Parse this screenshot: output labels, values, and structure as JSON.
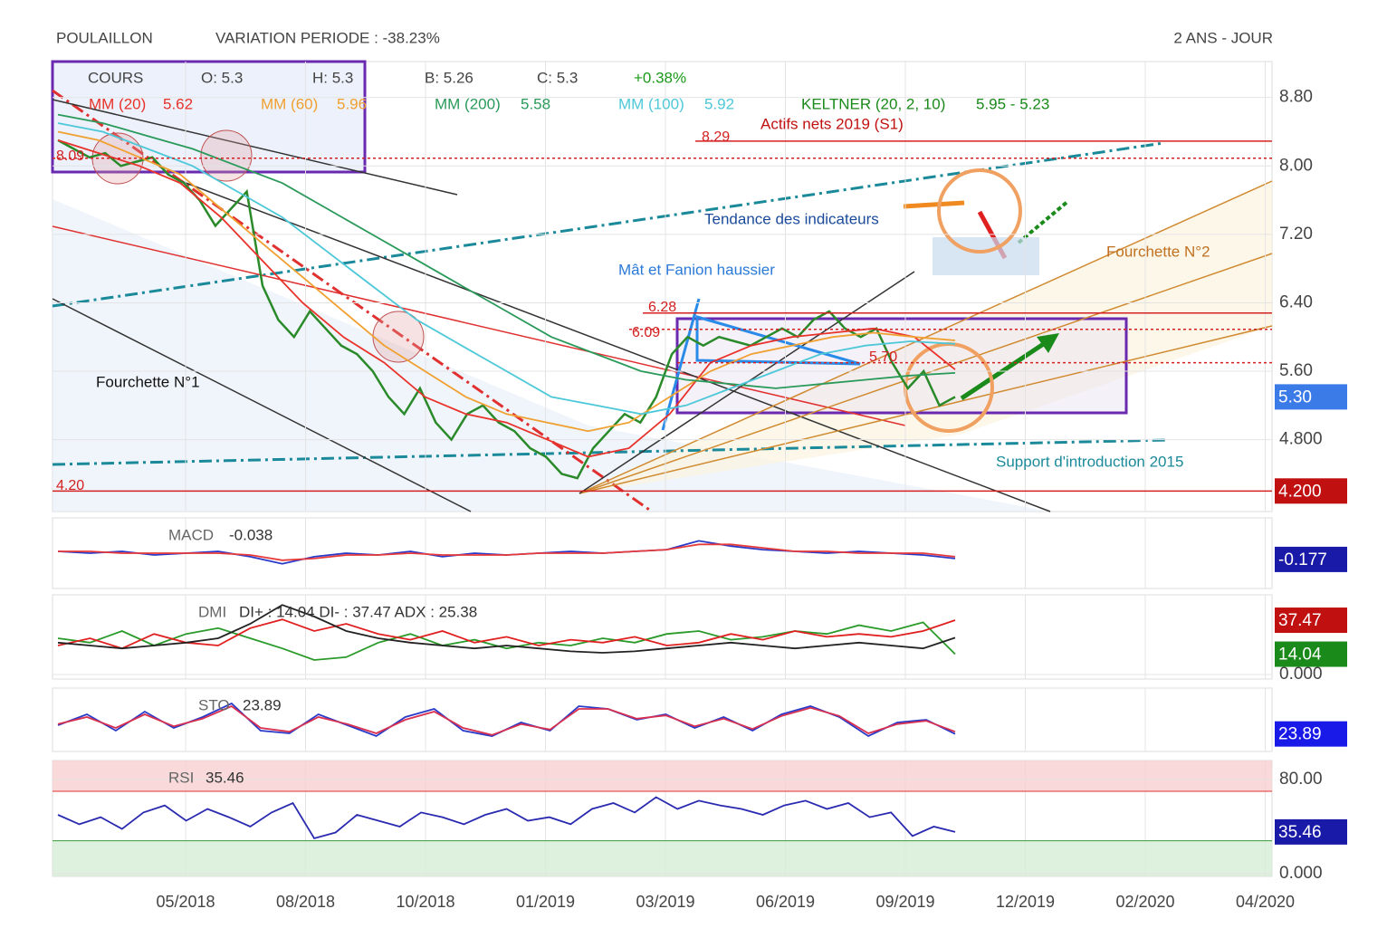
{
  "chart_data": [
    {
      "type": "line",
      "title": "POULAILLON",
      "subtitle": "VARIATION PERIODE : -38.23%",
      "period": "2 ANS - JOUR",
      "quote": [
        "COURS",
        "O: 5.3",
        "H: 5.3",
        "B: 5.26",
        "C: 5.3",
        "+0.38%"
      ],
      "ylim": [
        3.96,
        9.22
      ],
      "yticks": [
        {
          "value": 8.8,
          "label": "8.80"
        },
        {
          "value": 8,
          "label": "8.00"
        },
        {
          "value": 7.2,
          "label": "7.20"
        },
        {
          "value": 6.4,
          "label": "6.40"
        },
        {
          "value": 5.6,
          "label": "5.60"
        },
        {
          "value": 4.8,
          "label": "4.800"
        }
      ],
      "x_tick_labels": [
        "05/2018",
        "08/2018",
        "10/2018",
        "01/2019",
        "03/2019",
        "06/2019",
        "09/2019",
        "12/2019",
        "02/2020",
        "04/2020"
      ],
      "series": [
        {
          "name": "COURS",
          "color": "#2a8a2a",
          "values": [
            8.3,
            8.2,
            8.1,
            8.15,
            8.0,
            8.05,
            8.1,
            7.9,
            7.8,
            7.6,
            7.3,
            7.5,
            7.7,
            6.6,
            6.2,
            6.0,
            6.3,
            6.1,
            5.9,
            5.8,
            5.6,
            5.3,
            5.1,
            5.4,
            5.0,
            4.8,
            5.1,
            5.2,
            5.0,
            4.9,
            4.7,
            4.6,
            4.4,
            4.35,
            4.7,
            4.9,
            5.1,
            5.0,
            5.3,
            5.8,
            6.0,
            5.9,
            6.0,
            5.95,
            5.9,
            6.0,
            6.1,
            6.0,
            6.2,
            6.3,
            6.1,
            6.0,
            6.1,
            5.7,
            5.4,
            5.6,
            5.2,
            5.3
          ]
        },
        {
          "name": "MM (20)",
          "color": "#e8322a",
          "last": 5.62,
          "values": [
            8.3,
            8.15,
            8.0,
            7.8,
            7.4,
            6.9,
            6.4,
            6.0,
            5.7,
            5.3,
            5.1,
            5.0,
            4.8,
            4.6,
            4.7,
            5.1,
            5.7,
            5.9,
            6.0,
            6.05,
            6.1,
            6.0,
            5.62
          ]
        },
        {
          "name": "MM (60)",
          "color": "#f0a030",
          "last": 5.96,
          "values": [
            8.4,
            8.3,
            8.1,
            7.9,
            7.5,
            7.1,
            6.7,
            6.3,
            5.9,
            5.6,
            5.3,
            5.1,
            5.0,
            4.9,
            5.0,
            5.3,
            5.6,
            5.8,
            5.9,
            6.0,
            6.05,
            6.0,
            5.96
          ]
        },
        {
          "name": "MM (200)",
          "color": "#2a9a5a",
          "last": 5.58,
          "values": [
            8.6,
            8.5,
            8.35,
            8.2,
            8.0,
            7.8,
            7.5,
            7.2,
            6.9,
            6.6,
            6.3,
            6.0,
            5.8,
            5.6,
            5.5,
            5.45,
            5.4,
            5.45,
            5.5,
            5.55,
            5.58
          ]
        },
        {
          "name": "MM (100)",
          "color": "#4cc8d8",
          "last": 5.92,
          "values": [
            8.5,
            8.4,
            8.2,
            8.0,
            7.7,
            7.4,
            7.0,
            6.6,
            6.2,
            5.9,
            5.6,
            5.3,
            5.2,
            5.1,
            5.2,
            5.4,
            5.6,
            5.8,
            5.9,
            5.95,
            5.92
          ]
        },
        {
          "name": "KELTNER (20, 2, 10)",
          "color": "#1a8a1a",
          "last_label": "5.95 - 5.23"
        }
      ],
      "levels": [
        {
          "value": 8.29,
          "label": "8.29",
          "color": "#d42020",
          "dashed": false
        },
        {
          "value": 4.2,
          "label": "4.20",
          "color": "#d42020",
          "dashed": false
        },
        {
          "value": 6.28,
          "label": "6.28",
          "color": "#d42020",
          "dashed": false
        },
        {
          "value": 8.09,
          "label": "8.09",
          "color": "#d42020",
          "dashed": true
        },
        {
          "value": 6.09,
          "label": "6.09",
          "color": "#d42020",
          "dashed": true
        },
        {
          "value": 5.7,
          "label": "5.70",
          "color": "#d42020",
          "dashed": true
        }
      ],
      "badges": [
        {
          "value": 5.3,
          "label": "5.30",
          "color": "#3b7be8"
        },
        {
          "value": 4.2,
          "label": "4.200",
          "color": "#c01010"
        }
      ],
      "annotations": [
        {
          "text": "Actifs nets 2019 (S1)",
          "color": "#c01010"
        },
        {
          "text": "Tendance des indicateurs",
          "color": "#1a4a9a"
        },
        {
          "text": "Mât et Fanion haussier",
          "color": "#2a7ad8"
        },
        {
          "text": "Fourchette N°2",
          "color": "#c07020"
        },
        {
          "text": "Fourchette N°1",
          "color": "#111111"
        },
        {
          "text": "Support d'introduction 2015",
          "color": "#1a8a9a"
        }
      ]
    },
    {
      "type": "line",
      "title": "MACD",
      "header": "-0.038",
      "ylim": [
        -1,
        1
      ],
      "series": [
        {
          "name": "MACD",
          "color": "#2a3ac8",
          "values": [
            0.05,
            0.0,
            0.05,
            -0.05,
            0.0,
            0.05,
            -0.1,
            -0.3,
            -0.1,
            0.0,
            -0.05,
            0.05,
            -0.1,
            0.0,
            -0.05,
            0.0,
            0.05,
            0.0,
            0.05,
            0.1,
            0.35,
            0.2,
            0.1,
            0.05,
            0.0,
            0.05,
            0.0,
            -0.05,
            -0.15
          ]
        },
        {
          "name": "Signal",
          "color": "#e83a3a",
          "values": [
            0.05,
            0.05,
            0.0,
            0.0,
            0.0,
            0.0,
            -0.05,
            -0.2,
            -0.15,
            -0.05,
            -0.05,
            0.0,
            -0.05,
            -0.05,
            -0.05,
            0.0,
            0.0,
            0.0,
            0.05,
            0.1,
            0.25,
            0.25,
            0.15,
            0.05,
            0.05,
            0.0,
            0.0,
            0.0,
            -0.1
          ]
        }
      ],
      "badges": [
        {
          "value": -0.177,
          "color": "#1a1aa8"
        }
      ]
    },
    {
      "type": "line",
      "title": "DMI",
      "header": "DI+ : 14.04 DI- : 37.47 ADX : 25.38",
      "ylim": [
        0,
        55
      ],
      "yticks": [
        {
          "value": 0,
          "label": "0.000"
        }
      ],
      "series": [
        {
          "name": "DI+",
          "color": "#2a9a2a",
          "values": [
            25,
            22,
            30,
            20,
            28,
            32,
            25,
            18,
            10,
            12,
            22,
            28,
            20,
            24,
            18,
            22,
            20,
            25,
            22,
            28,
            30,
            24,
            26,
            30,
            28,
            34,
            30,
            36,
            14.04
          ]
        },
        {
          "name": "DI-",
          "color": "#e02020",
          "values": [
            20,
            25,
            18,
            28,
            22,
            20,
            32,
            38,
            30,
            35,
            28,
            24,
            30,
            22,
            26,
            20,
            24,
            22,
            26,
            20,
            22,
            28,
            24,
            30,
            26,
            28,
            26,
            30,
            37.47
          ]
        },
        {
          "name": "ADX",
          "color": "#222222",
          "values": [
            22,
            20,
            18,
            20,
            22,
            25,
            35,
            48,
            40,
            30,
            25,
            22,
            20,
            18,
            20,
            18,
            16,
            15,
            16,
            18,
            20,
            22,
            20,
            18,
            20,
            22,
            20,
            18,
            25.38
          ]
        }
      ],
      "badges": [
        {
          "value": 37.47,
          "color": "#c01010"
        },
        {
          "value": 14.04,
          "color": "#1a8a1a"
        }
      ]
    },
    {
      "type": "line",
      "title": "STO",
      "header": "23.89",
      "ylim": [
        0,
        100
      ],
      "series": [
        {
          "name": "STO",
          "color": "#2a3ac8",
          "values": [
            40,
            60,
            30,
            65,
            35,
            55,
            80,
            30,
            25,
            60,
            40,
            20,
            55,
            70,
            30,
            20,
            45,
            30,
            75,
            70,
            50,
            60,
            35,
            55,
            30,
            60,
            75,
            55,
            20,
            45,
            50,
            23.89
          ]
        },
        {
          "name": "Signal",
          "color": "#d83050",
          "values": [
            42,
            55,
            35,
            60,
            38,
            52,
            75,
            35,
            28,
            55,
            42,
            25,
            50,
            65,
            35,
            22,
            42,
            32,
            70,
            70,
            52,
            58,
            38,
            52,
            33,
            57,
            72,
            57,
            25,
            42,
            48,
            28
          ]
        }
      ],
      "badges": [
        {
          "value": 23.89,
          "color": "#1a1ae8"
        }
      ]
    },
    {
      "type": "line",
      "title": "RSI",
      "header": "35.46",
      "ylim": [
        0,
        100
      ],
      "yticks": [
        {
          "value": 80,
          "label": "80.00"
        },
        {
          "value": 0,
          "label": "0.000"
        }
      ],
      "upper": 70,
      "lower": 28,
      "series": [
        {
          "name": "RSI",
          "color": "#2a2ab0",
          "values": [
            50,
            42,
            48,
            38,
            52,
            58,
            45,
            55,
            48,
            40,
            52,
            60,
            30,
            35,
            50,
            45,
            40,
            52,
            48,
            42,
            50,
            55,
            45,
            48,
            42,
            55,
            60,
            52,
            65,
            55,
            62,
            58,
            55,
            50,
            58,
            62,
            55,
            60,
            48,
            52,
            32,
            40,
            35.46
          ]
        }
      ],
      "badges": [
        {
          "value": 35.46,
          "color": "#1a1aa8"
        }
      ]
    }
  ]
}
